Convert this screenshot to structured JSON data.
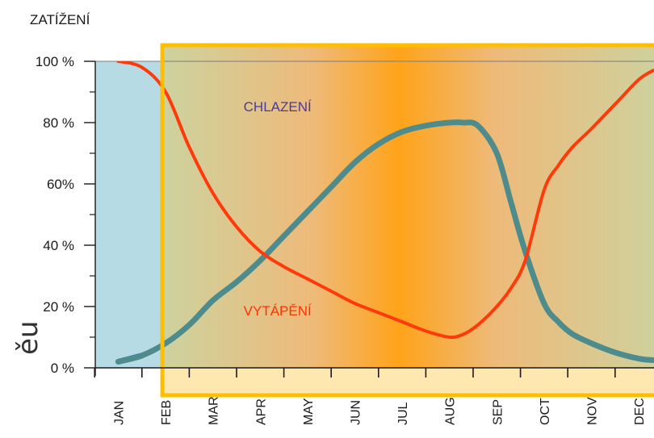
{
  "chart_data": {
    "type": "line",
    "ylabel": "ZATÍŽENÍ",
    "categories": [
      "JAN",
      "FEB",
      "MAR",
      "APR",
      "MAY",
      "JUN",
      "JUL",
      "AUG",
      "SEP",
      "OCT",
      "NOV",
      "DEC"
    ],
    "y_ticks": [
      {
        "value": 0,
        "label": "0 %"
      },
      {
        "value": 20,
        "label": "20 %"
      },
      {
        "value": 40,
        "label": "40 %"
      },
      {
        "value": 60,
        "label": "60%"
      },
      {
        "value": 80,
        "label": "80 %"
      },
      {
        "value": 100,
        "label": "100 %"
      }
    ],
    "ylim": [
      0,
      100
    ],
    "series": [
      {
        "name": "CHLAZENÍ",
        "x": [
          0,
          0.5,
          1,
          1.5,
          2,
          2.5,
          3,
          3.5,
          4,
          4.5,
          5,
          5.5,
          6,
          6.5,
          7,
          7.3,
          7.6,
          8,
          8.3,
          8.6,
          9,
          9.3,
          9.6,
          10,
          10.5,
          11,
          11.3
        ],
        "values": [
          2,
          4,
          8,
          14,
          22,
          28,
          35,
          43,
          51,
          59,
          67,
          73,
          77,
          79,
          80,
          80,
          79,
          70,
          54,
          38,
          21,
          15,
          11,
          8,
          5,
          3,
          2.5
        ]
      },
      {
        "name": "VYTÁPĚNÍ",
        "x": [
          0,
          0.5,
          1,
          1.5,
          2,
          2.5,
          3,
          3.5,
          4,
          4.5,
          5,
          5.5,
          6,
          6.5,
          7,
          7.3,
          7.6,
          8,
          8.3,
          8.6,
          9,
          9.3,
          9.6,
          10,
          10.5,
          11,
          11.3
        ],
        "values": [
          100,
          98,
          90,
          72,
          57,
          46,
          38,
          33,
          29,
          25,
          21,
          18,
          15,
          12,
          10,
          11,
          14,
          20,
          26,
          35,
          58,
          66,
          72,
          78,
          86,
          94,
          97
        ]
      }
    ],
    "annotations": [
      {
        "text": "CHLAZENÍ",
        "x": 2.75,
        "y": 85,
        "color": "#4b3a9c"
      },
      {
        "text": "VYTÁPĚNÍ",
        "x": 2.75,
        "y": 19,
        "color": "#ff3300"
      }
    ],
    "highlight_range": [
      1,
      11.5
    ],
    "colors": {
      "background": "#b7dbe4",
      "cooling_line": "#4e8b8c",
      "heating_line": "#ff3a0a",
      "edge_line": "#1e6fc0",
      "highlight_border": "#ffbf00",
      "highlight_strip": "#ffe8b0",
      "gradient_edge": "#cdd29f",
      "gradient_mid": "#eeba79",
      "gradient_center": "#ffa31a"
    },
    "edge_text": "ěu",
    "grid": false
  }
}
